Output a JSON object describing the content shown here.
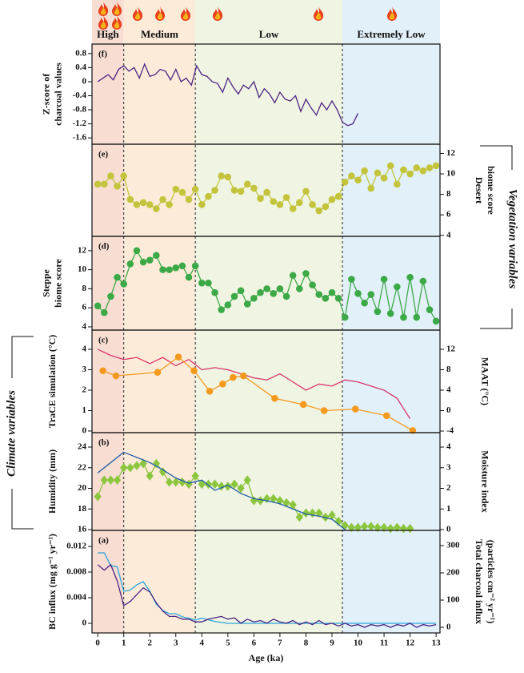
{
  "fire_zones": {
    "labels": [
      "High",
      "Medium",
      "Low",
      "Extremely Low"
    ],
    "colors": [
      "#f8ddd2",
      "#fdebd9",
      "#f0f4e2",
      "#e2f0fa"
    ],
    "boundaries": [
      1.0,
      3.75,
      9.4
    ]
  },
  "group_labels": {
    "vegetation": "Vegetation variables",
    "climate": "Climate variables"
  },
  "chart_data": [
    {
      "type": "line",
      "panel_label": "(f)",
      "ylabel": [
        "Z-score of",
        "charcoal values"
      ],
      "ylabel_color": "#111111",
      "ylim": [
        -1.78,
        1.07
      ],
      "yticks": [
        0.8,
        0.4,
        0,
        -0.4,
        -0.8,
        -1.2,
        -1.6
      ],
      "series": [
        {
          "color": "#4b2585",
          "x": [
            0,
            0.2,
            0.4,
            0.6,
            0.8,
            1.0,
            1.2,
            1.4,
            1.6,
            1.8,
            2.0,
            2.2,
            2.4,
            2.6,
            2.8,
            3.0,
            3.2,
            3.4,
            3.6,
            3.8,
            4.0,
            4.2,
            4.4,
            4.6,
            4.8,
            5.0,
            5.2,
            5.4,
            5.6,
            5.8,
            6.0,
            6.2,
            6.4,
            6.6,
            6.8,
            7.0,
            7.2,
            7.4,
            7.6,
            7.8,
            8.0,
            8.2,
            8.4,
            8.6,
            8.8,
            9.0,
            9.2,
            9.4,
            9.6,
            9.8,
            10.0
          ],
          "values": [
            0,
            0.1,
            0.2,
            0.05,
            0.35,
            0.45,
            0.3,
            0.4,
            0.1,
            0.5,
            0.15,
            0.2,
            0.35,
            0.3,
            0.05,
            0.35,
            0.0,
            0.1,
            -0.1,
            0.45,
            0.2,
            0.15,
            0.0,
            -0.05,
            -0.3,
            0.1,
            -0.15,
            -0.35,
            -0.1,
            -0.2,
            0.0,
            -0.45,
            -0.2,
            -0.35,
            -0.6,
            -0.3,
            -0.5,
            -0.55,
            -0.4,
            -0.85,
            -0.5,
            -0.75,
            -0.95,
            -0.6,
            -0.8,
            -0.55,
            -0.8,
            -1.15,
            -1.25,
            -1.2,
            -0.9
          ]
        }
      ]
    },
    {
      "type": "line",
      "panel_label": "(e)",
      "y2label": [
        "Desert",
        "biome score"
      ],
      "y2label_color": "#111111",
      "y2lim": [
        3.9,
        12.9
      ],
      "y2ticks": [
        4,
        6,
        8,
        10,
        12
      ],
      "series": [
        {
          "color": "#c3c43c",
          "marker": "circle",
          "axis": "y2",
          "x": [
            0,
            0.25,
            0.5,
            0.75,
            1,
            1.25,
            1.5,
            1.75,
            2,
            2.25,
            2.5,
            2.75,
            3,
            3.25,
            3.5,
            3.75,
            4,
            4.25,
            4.5,
            4.75,
            5,
            5.25,
            5.5,
            5.75,
            6,
            6.25,
            6.5,
            6.75,
            7,
            7.25,
            7.5,
            7.75,
            8,
            8.25,
            8.5,
            8.75,
            9,
            9.25,
            9.5,
            9.75,
            10,
            10.25,
            10.5,
            10.75,
            11,
            11.25,
            11.5,
            11.75,
            12,
            12.25,
            12.5,
            12.75,
            13
          ],
          "values": [
            9.0,
            9.0,
            9.8,
            8.8,
            9.8,
            7.5,
            7.0,
            7.2,
            7.0,
            6.6,
            7.5,
            7.0,
            8.5,
            8.2,
            7.5,
            8.5,
            7.0,
            7.8,
            8.4,
            9.8,
            9.7,
            8.4,
            8.3,
            9.0,
            8.6,
            7.6,
            8.2,
            7.3,
            7.0,
            7.7,
            6.6,
            7.2,
            8.3,
            7.0,
            6.4,
            6.8,
            7.5,
            7.8,
            9.2,
            9.8,
            9.4,
            10.3,
            8.6,
            10.1,
            9.6,
            10.8,
            9.0,
            10.4,
            10.0,
            10.6,
            10.3,
            10.6,
            10.8
          ]
        }
      ]
    },
    {
      "type": "line",
      "panel_label": "(d)",
      "ylabel": [
        "Steppe",
        "biome score"
      ],
      "ylabel_color": "#111111",
      "ylim": [
        3.66,
        13.5
      ],
      "yticks": [
        4,
        6,
        8,
        10,
        12
      ],
      "series": [
        {
          "color": "#3ca947",
          "marker": "circle",
          "x": [
            0,
            0.25,
            0.5,
            0.75,
            1,
            1.25,
            1.5,
            1.75,
            2,
            2.25,
            2.5,
            2.75,
            3,
            3.25,
            3.5,
            3.75,
            4,
            4.25,
            4.5,
            4.75,
            5,
            5.25,
            5.5,
            5.75,
            6,
            6.25,
            6.5,
            6.75,
            7,
            7.25,
            7.5,
            7.75,
            8,
            8.25,
            8.5,
            8.75,
            9,
            9.25,
            9.5,
            9.75,
            10,
            10.25,
            10.5,
            10.75,
            11,
            11.25,
            11.5,
            11.75,
            12,
            12.25,
            12.5,
            12.75,
            13
          ],
          "values": [
            6.2,
            5.5,
            7.2,
            9.2,
            8.5,
            10.6,
            12.0,
            10.8,
            11.0,
            11.5,
            10.0,
            10.0,
            10.2,
            10.4,
            9.2,
            10.4,
            8.6,
            8.6,
            7.6,
            5.8,
            6.3,
            7.2,
            7.8,
            6.4,
            7.0,
            7.6,
            8.0,
            7.5,
            8.0,
            7.2,
            9.4,
            8.0,
            9.6,
            8.4,
            7.4,
            7.0,
            7.6,
            7.0,
            5.0,
            9.0,
            7.5,
            6.5,
            7.4,
            5.6,
            9.0,
            5.4,
            8.2,
            5.0,
            9.2,
            5.0,
            8.8,
            5.8,
            4.6
          ]
        }
      ]
    },
    {
      "type": "line",
      "panel_label": "(c)",
      "ylabel": [
        "TraCE simulation (°C)"
      ],
      "ylabel_color": "#e2213b",
      "ylim": [
        -0.08,
        4.94
      ],
      "yticks": [
        0,
        1,
        2,
        3,
        4
      ],
      "y2label": [
        "MAAT (°C)"
      ],
      "y2label_color": "#f39a1e",
      "y2lim": [
        -4.31,
        15.76
      ],
      "y2ticks": [
        -4,
        0,
        4,
        8,
        12
      ],
      "series": [
        {
          "color": "#d9356a",
          "x": [
            0,
            0.5,
            1,
            1.5,
            2,
            2.5,
            3,
            3.5,
            4,
            4.5,
            5,
            5.5,
            6,
            6.5,
            7,
            7.5,
            8,
            8.5,
            9,
            9.5,
            10,
            10.5,
            11,
            11.5,
            12
          ],
          "values": [
            4.0,
            3.7,
            3.5,
            3.6,
            3.3,
            3.6,
            3.2,
            3.5,
            3.0,
            3.1,
            3.0,
            2.8,
            2.6,
            2.5,
            2.8,
            2.4,
            2.0,
            2.3,
            2.2,
            2.5,
            2.4,
            2.2,
            2.0,
            1.6,
            0.6
          ]
        },
        {
          "color": "#f39a1e",
          "marker": "circle",
          "axis": "y2",
          "x": [
            0.2,
            0.7,
            2.3,
            3.1,
            3.7,
            4.3,
            4.8,
            5.2,
            5.6,
            6.8,
            7.9,
            8.7,
            9.9,
            11.1,
            12.1
          ],
          "values": [
            7.8,
            6.8,
            7.5,
            10.5,
            7.8,
            3.8,
            5.2,
            6.5,
            6.8,
            2.4,
            1.2,
            0.0,
            0.3,
            -1.0,
            -3.9
          ]
        }
      ]
    },
    {
      "type": "line",
      "panel_label": "(b)",
      "ylabel": [
        "Humidity (mm)"
      ],
      "ylabel_color": "#1f5fa8",
      "ylim": [
        15.92,
        25.4
      ],
      "yticks": [
        16,
        18,
        20,
        22,
        24
      ],
      "y2label": [
        "Moisture index"
      ],
      "y2label_color": "#8cc63f",
      "y2lim": [
        -0.04,
        4.7
      ],
      "y2ticks": [
        0,
        1,
        2,
        3,
        4
      ],
      "series": [
        {
          "color": "#8cc63f",
          "marker": "diamond",
          "axis": "y2",
          "x": [
            0,
            0.25,
            0.5,
            0.75,
            1,
            1.25,
            1.5,
            1.75,
            2,
            2.25,
            2.5,
            2.75,
            3,
            3.25,
            3.5,
            3.75,
            4,
            4.25,
            4.5,
            4.75,
            5,
            5.25,
            5.5,
            5.75,
            6,
            6.25,
            6.5,
            6.75,
            7,
            7.25,
            7.5,
            7.75,
            8,
            8.25,
            8.5,
            8.75,
            9,
            9.25,
            9.5,
            9.75,
            10,
            10.25,
            10.5,
            10.75,
            11,
            11.25,
            11.5,
            11.75,
            12
          ],
          "values": [
            1.6,
            2.4,
            2.4,
            2.4,
            3.0,
            3.0,
            3.1,
            3.2,
            2.6,
            3.2,
            2.8,
            2.3,
            2.3,
            2.3,
            2.2,
            2.6,
            2.2,
            2.2,
            2.2,
            2.1,
            2.1,
            2.2,
            2.0,
            2.4,
            1.4,
            1.4,
            1.5,
            1.5,
            1.4,
            1.3,
            1.2,
            0.6,
            0.8,
            0.8,
            0.8,
            0.6,
            0.7,
            0.4,
            0.2,
            0.1,
            0.1,
            0.15,
            0.15,
            0.1,
            0.1,
            0.05,
            0.1,
            0.05,
            0.05
          ]
        },
        {
          "color": "#1f5fa8",
          "x": [
            0,
            0.5,
            1,
            1.5,
            2,
            2.5,
            3,
            3.5,
            4,
            4.5,
            5,
            5.5,
            6,
            6.5,
            7,
            7.5,
            8,
            8.5,
            9,
            9.5
          ],
          "values": [
            21.5,
            22.5,
            23.5,
            23.0,
            22.5,
            21.8,
            21.0,
            20.5,
            20.8,
            19.8,
            20.3,
            19.5,
            19.0,
            18.8,
            18.5,
            18.0,
            17.5,
            17.3,
            17.0,
            16.0
          ]
        }
      ]
    },
    {
      "type": "line",
      "panel_label": "(a)",
      "ylabel": [
        "BC influx (mg g⁻¹ yr⁻¹)"
      ],
      "ylabel_color": "#29a6de",
      "ylim": [
        -0.0015,
        0.0145
      ],
      "yticks": [
        0,
        0.004,
        0.008,
        0.012
      ],
      "y2label": [
        "Total charcoal  influx",
        "(particles cm⁻² yr⁻¹)"
      ],
      "y2label_color": "#5b2a86",
      "y2lim": [
        -20.6,
        356
      ],
      "y2ticks": [
        0,
        100,
        200,
        300
      ],
      "xlabel": "Age (ka)",
      "xlim": [
        -0.22,
        13.15
      ],
      "xticks": [
        0,
        1,
        2,
        3,
        4,
        5,
        6,
        7,
        8,
        9,
        10,
        11,
        12,
        13
      ],
      "series": [
        {
          "color": "#29a6de",
          "x": [
            0,
            0.25,
            0.5,
            0.75,
            1,
            1.25,
            1.5,
            1.75,
            2,
            2.25,
            2.5,
            2.75,
            3,
            3.25,
            3.5,
            3.75,
            4,
            4.5,
            5,
            6,
            7,
            8,
            9,
            10,
            11,
            12,
            13
          ],
          "values": [
            0.011,
            0.011,
            0.009,
            0.0088,
            0.005,
            0.0052,
            0.006,
            0.0065,
            0.005,
            0.003,
            0.002,
            0.0015,
            0.0015,
            0.001,
            0.0008,
            0.0005,
            0.0008,
            0.0003,
            0,
            0,
            0,
            0,
            0,
            0,
            0,
            0,
            0
          ]
        },
        {
          "color": "#4b2585",
          "axis": "y2",
          "x": [
            0,
            0.25,
            0.5,
            0.75,
            1,
            1.25,
            1.5,
            1.75,
            2,
            2.25,
            2.5,
            2.75,
            3,
            3.25,
            3.5,
            3.75,
            4,
            4.25,
            4.5,
            4.75,
            5,
            5.25,
            5.5,
            5.75,
            6,
            6.25,
            6.5,
            6.75,
            7,
            7.25,
            7.5,
            7.75,
            8,
            8.25,
            8.5,
            8.75,
            9,
            9.25,
            9.5,
            9.75,
            10,
            10.25,
            10.5,
            10.75,
            11,
            11.25,
            11.5,
            11.75,
            12,
            12.25,
            12.5,
            12.75,
            13
          ],
          "values": [
            230,
            210,
            230,
            170,
            80,
            95,
            120,
            145,
            130,
            90,
            60,
            40,
            40,
            30,
            30,
            20,
            20,
            30,
            35,
            40,
            30,
            35,
            15,
            30,
            20,
            25,
            15,
            30,
            20,
            15,
            25,
            10,
            20,
            10,
            25,
            10,
            15,
            5,
            15,
            5,
            10,
            0,
            10,
            5,
            10,
            0,
            10,
            5,
            15,
            0,
            10,
            5,
            10
          ]
        }
      ]
    }
  ]
}
